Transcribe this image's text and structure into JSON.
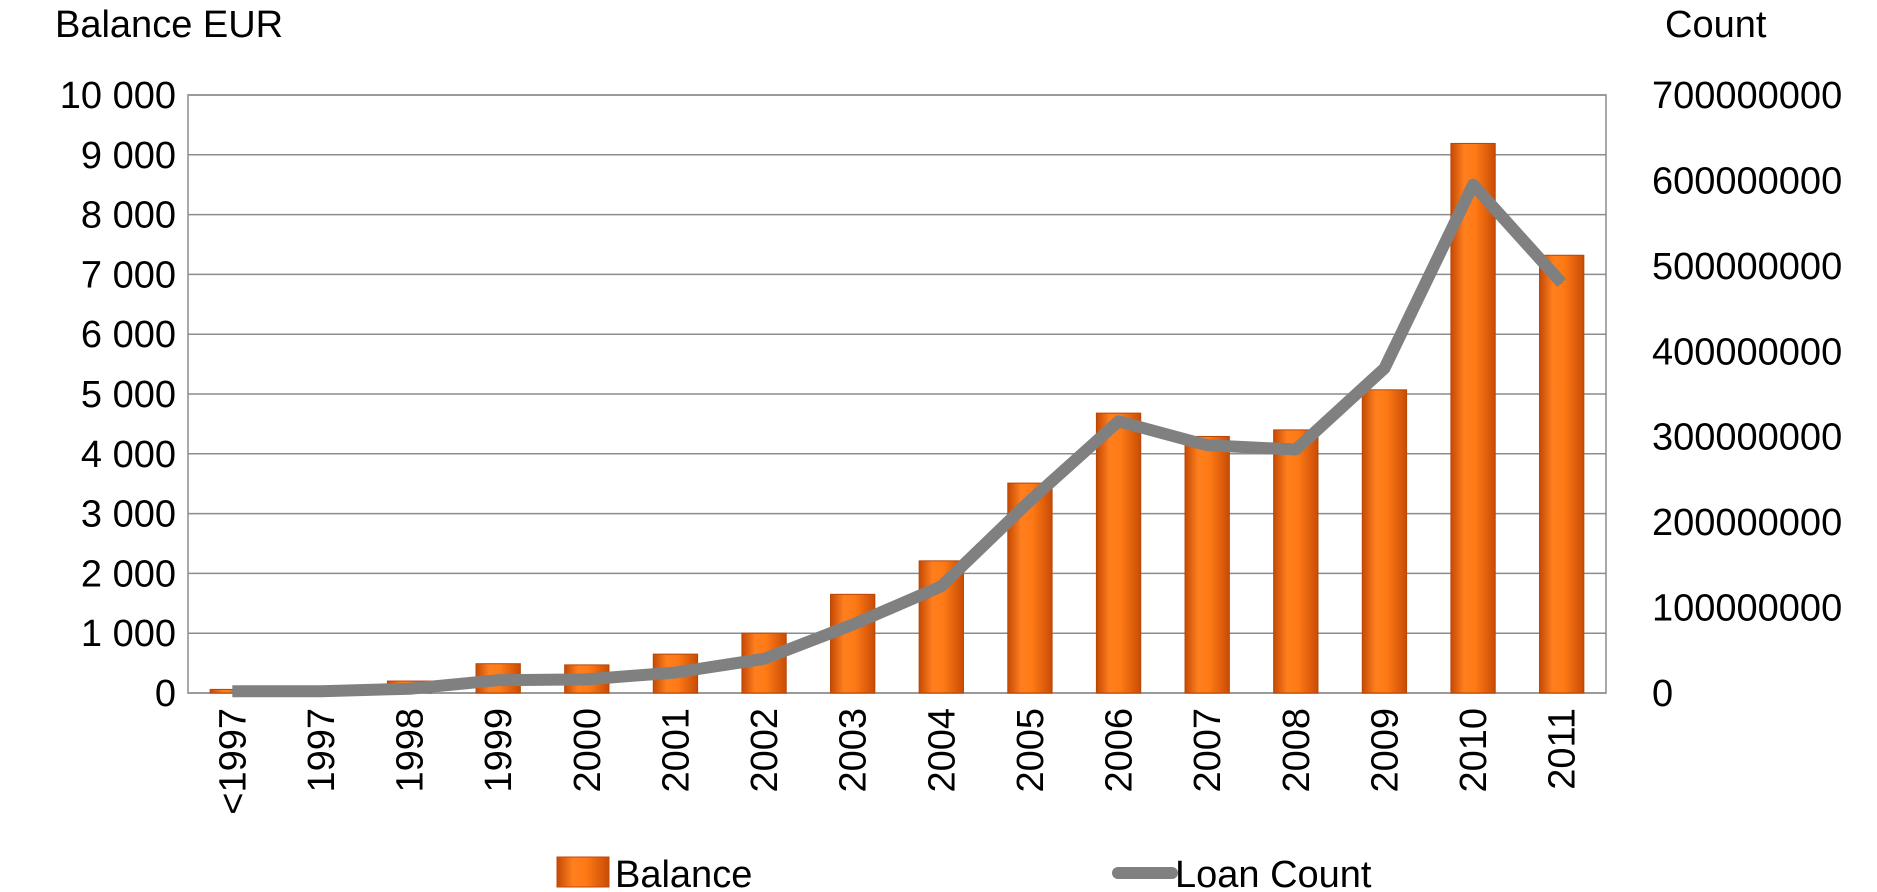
{
  "chart_data": {
    "type": "bar",
    "title": "",
    "ylabel": "Balance EUR",
    "y2label": "Count",
    "categories": [
      "<1997",
      "1997",
      "1998",
      "1999",
      "2000",
      "2001",
      "2002",
      "2003",
      "2004",
      "2005",
      "2006",
      "2007",
      "2008",
      "2009",
      "2010",
      "2011"
    ],
    "ylim": [
      0,
      10000
    ],
    "y2lim": [
      0,
      700000000
    ],
    "yticks": [
      "0",
      "1 000",
      "2 000",
      "3 000",
      "4 000",
      "5 000",
      "6 000",
      "7 000",
      "8 000",
      "9 000",
      "10 000"
    ],
    "y2ticks": [
      "0",
      "100000000",
      "200000000",
      "300000000",
      "400000000",
      "500000000",
      "600000000",
      "700000000"
    ],
    "grid": true,
    "legend_position": "bottom",
    "series": [
      {
        "name": "Balance",
        "type": "bar",
        "axis": "left",
        "color": "#F26B0F",
        "values": [
          60,
          20,
          200,
          490,
          470,
          650,
          1000,
          1650,
          2210,
          3510,
          4680,
          4290,
          4400,
          5070,
          9190,
          7320
        ]
      },
      {
        "name": "Loan Count",
        "type": "line",
        "axis": "right",
        "color": "#808080",
        "values": [
          2000000,
          2000000,
          5000000,
          15000000,
          16000000,
          24000000,
          40000000,
          80000000,
          125000000,
          225000000,
          318000000,
          290000000,
          285000000,
          380000000,
          595000000,
          480000000
        ]
      }
    ]
  }
}
